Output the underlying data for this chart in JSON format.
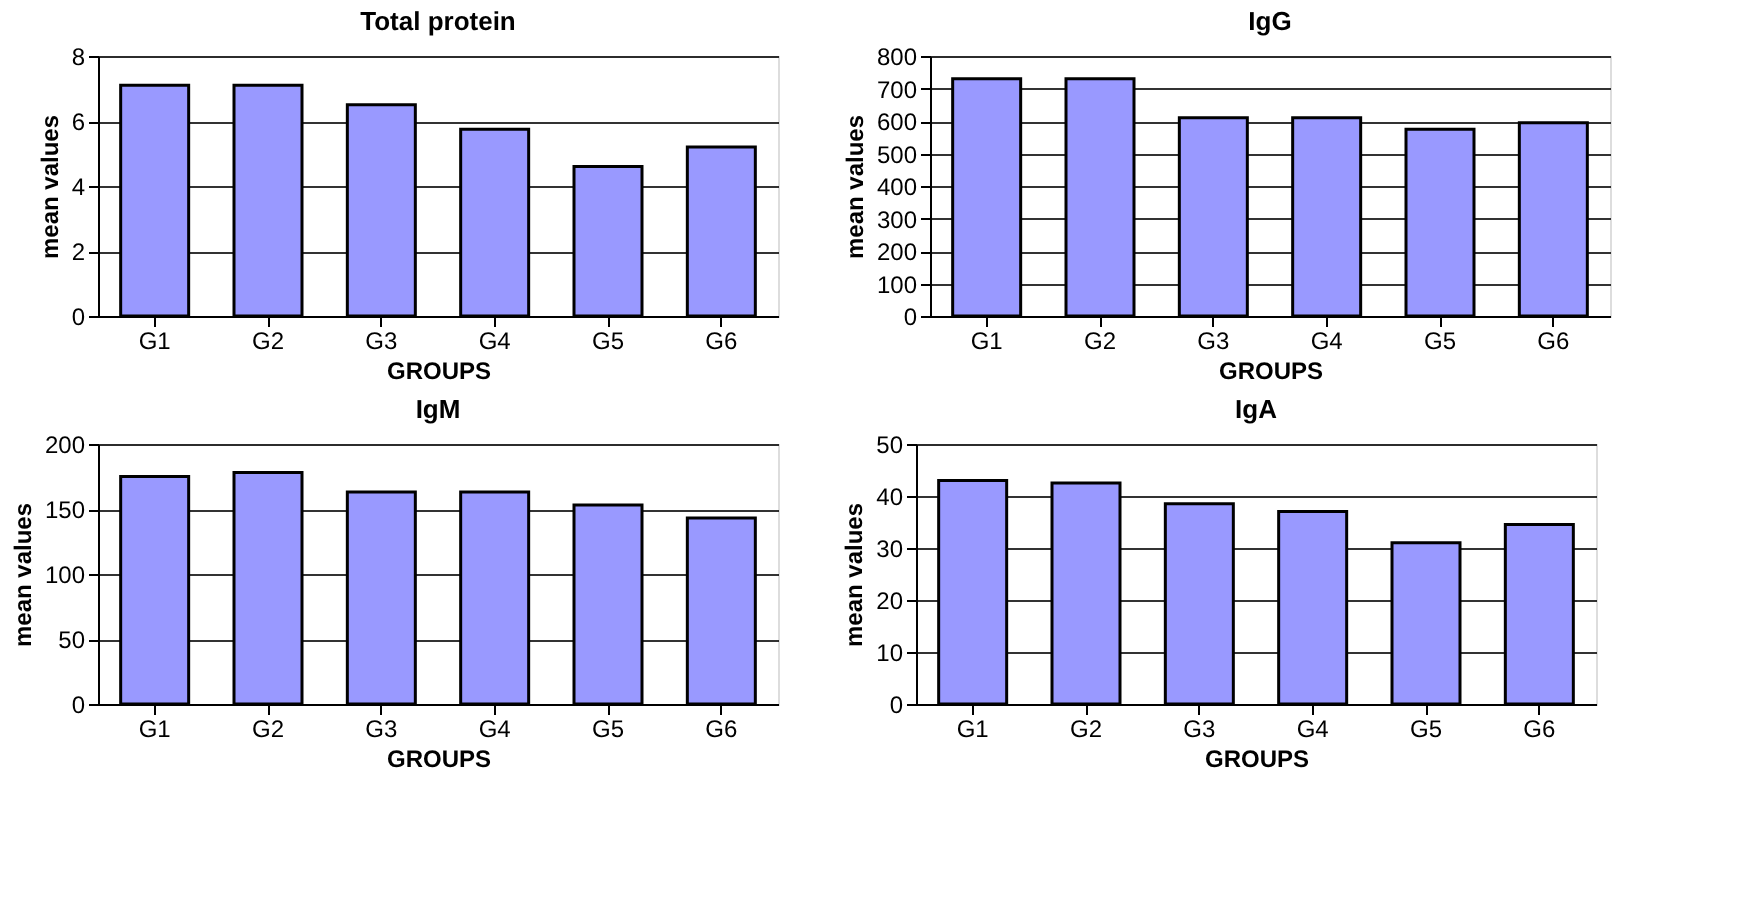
{
  "chart_data": [
    {
      "type": "bar",
      "title": "Total protein",
      "xlabel": "GROUPS",
      "ylabel": "mean values",
      "categories": [
        "G1",
        "G2",
        "G3",
        "G4",
        "G5",
        "G6"
      ],
      "values": [
        7.1,
        7.1,
        6.5,
        5.75,
        4.6,
        5.2
      ],
      "color": "#9999ff",
      "ylim": [
        0,
        8
      ],
      "yticks": [
        0,
        2,
        4,
        6,
        8
      ],
      "grid": "y"
    },
    {
      "type": "bar",
      "title": "IgG",
      "xlabel": "GROUPS",
      "ylabel": "mean values",
      "categories": [
        "G1",
        "G2",
        "G3",
        "G4",
        "G5",
        "G6"
      ],
      "values": [
        730,
        730,
        610,
        610,
        575,
        595
      ],
      "color": "#9999ff",
      "ylim": [
        0,
        800
      ],
      "yticks": [
        0,
        100,
        200,
        300,
        400,
        500,
        600,
        700,
        800
      ],
      "grid": "y"
    },
    {
      "type": "bar",
      "title": "IgM",
      "xlabel": "GROUPS",
      "ylabel": "mean values",
      "categories": [
        "G1",
        "G2",
        "G3",
        "G4",
        "G5",
        "G6"
      ],
      "values": [
        175,
        178,
        163,
        163,
        153,
        143
      ],
      "color": "#9999ff",
      "ylim": [
        0,
        200
      ],
      "yticks": [
        0,
        50,
        100,
        150,
        200
      ],
      "grid": "y"
    },
    {
      "type": "bar",
      "title": "IgA",
      "xlabel": "GROUPS",
      "ylabel": "mean values",
      "categories": [
        "G1",
        "G2",
        "G3",
        "G4",
        "G5",
        "G6"
      ],
      "values": [
        43,
        42.5,
        38.5,
        37,
        31,
        34.5
      ],
      "color": "#9999ff",
      "ylim": [
        0,
        50
      ],
      "yticks": [
        0,
        10,
        20,
        30,
        40,
        50
      ],
      "grid": "y"
    }
  ]
}
